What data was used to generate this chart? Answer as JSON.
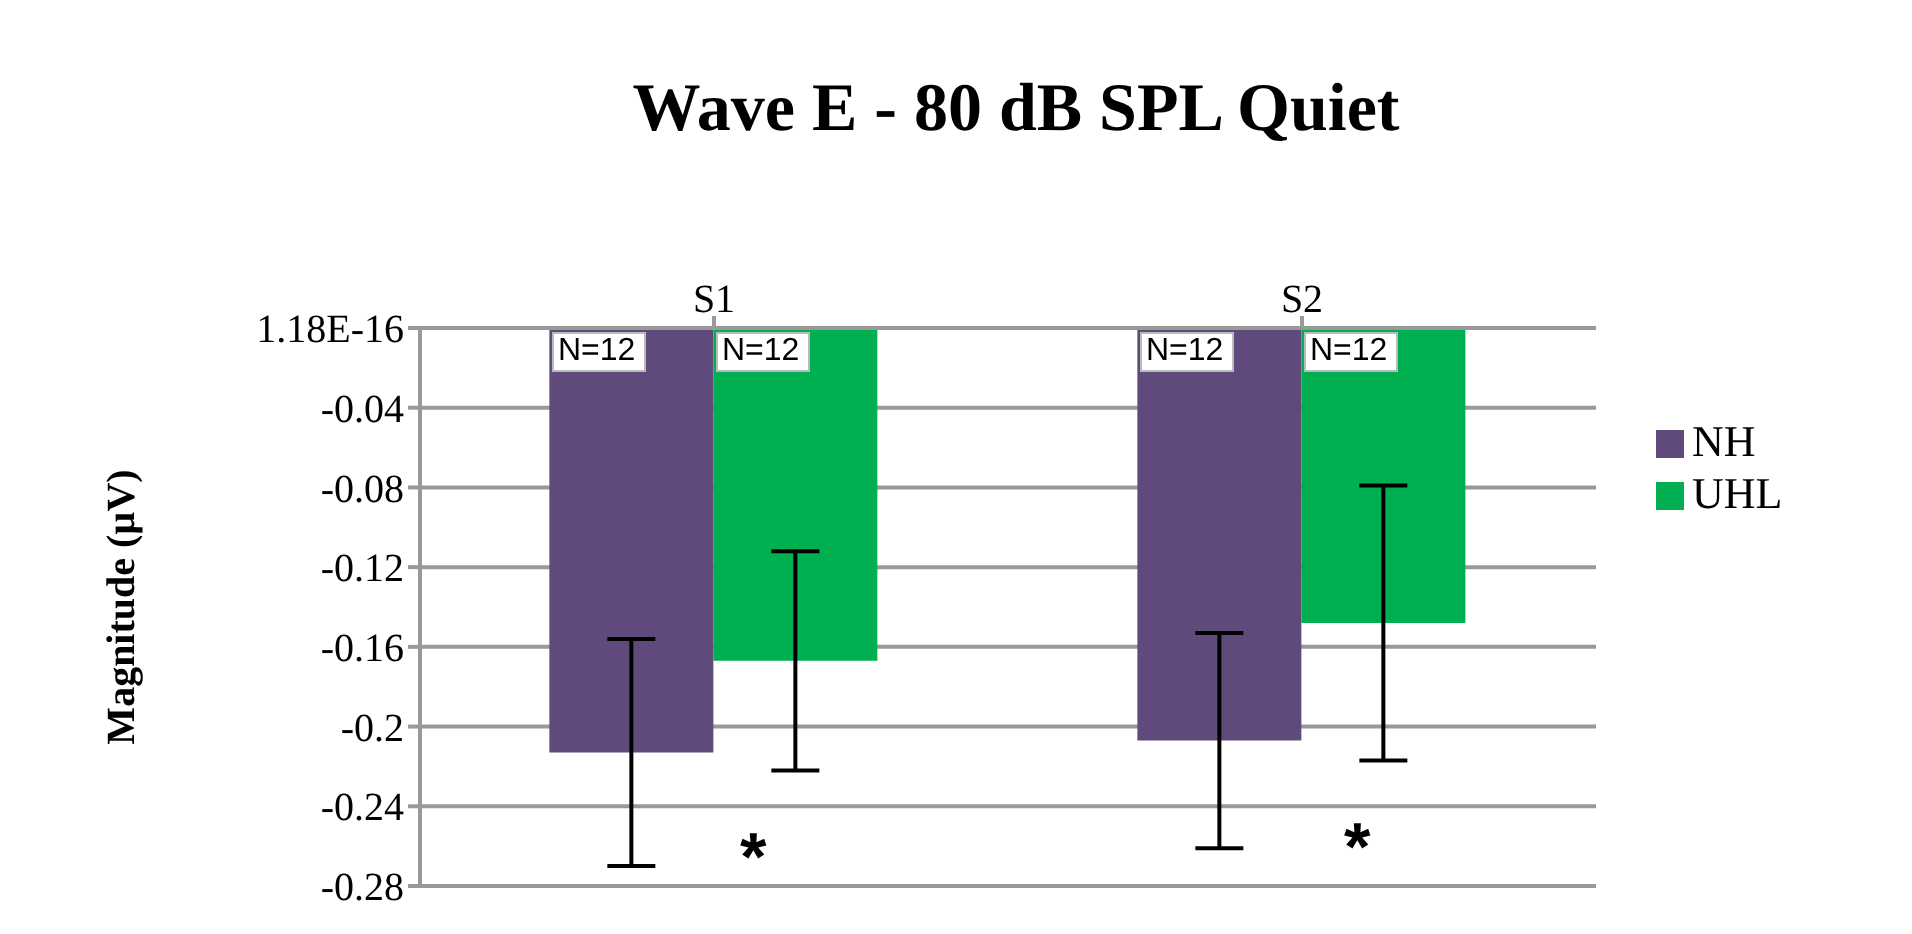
{
  "chart_data": {
    "type": "bar",
    "title": "Wave E - 80 dB SPL Quiet",
    "ylabel": "Magnitude (µV)",
    "categories": [
      "S1",
      "S2"
    ],
    "series": [
      {
        "name": "NH",
        "color": "#604a7b",
        "values": [
          -0.213,
          -0.207
        ],
        "errors": [
          0.057,
          0.054
        ]
      },
      {
        "name": "UHL",
        "color": "#00b050",
        "values": [
          -0.167,
          -0.148
        ],
        "errors": [
          0.055,
          0.069
        ]
      }
    ],
    "ylim": [
      -0.28,
      1.18e-16
    ],
    "yticks": [
      {
        "value": 1.18e-16,
        "label": "1.18E-16"
      },
      -0.04,
      -0.08,
      -0.12,
      -0.16,
      -0.2,
      -0.24,
      -0.28
    ],
    "annotations": [
      "N=12",
      "N=12",
      "N=12",
      "N=12",
      "*",
      "*"
    ],
    "grid": "y",
    "legend": "right"
  }
}
